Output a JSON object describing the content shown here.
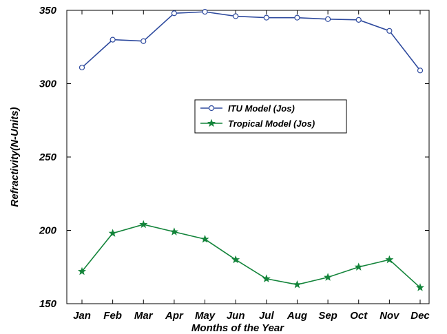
{
  "chart_data": {
    "type": "line",
    "title": "",
    "xlabel": "Months of the Year",
    "ylabel": "Refractivity(N-Units)",
    "categories": [
      "Jan",
      "Feb",
      "Mar",
      "Apr",
      "May",
      "Jun",
      "Jul",
      "Aug",
      "Sep",
      "Oct",
      "Nov",
      "Dec"
    ],
    "ylim": [
      150,
      350
    ],
    "yticks": [
      150,
      200,
      250,
      300,
      350
    ],
    "grid": false,
    "legend_position": "center-right",
    "series": [
      {
        "name": "ITU Model (Jos)",
        "color": "#2e4a9e",
        "marker": "circle",
        "values": [
          311,
          330,
          329,
          348,
          349,
          346,
          345,
          345,
          344,
          343.5,
          336,
          309
        ]
      },
      {
        "name": "Tropical Model (Jos)",
        "color": "#13843a",
        "marker": "star",
        "values": [
          172,
          198,
          204,
          199,
          194,
          180,
          167,
          163,
          168,
          175,
          180,
          161
        ]
      }
    ]
  }
}
